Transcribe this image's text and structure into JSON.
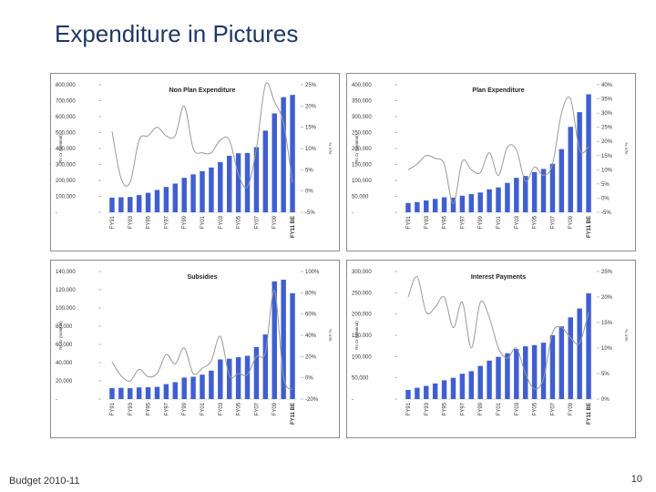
{
  "slide": {
    "title": "Expenditure in Pictures",
    "footer_left": "Budget 2010-11",
    "page_number": "10"
  },
  "colors": {
    "bar": "#3f5fd0",
    "line": "#9a9a9a",
    "title": "#1f3864"
  },
  "chart_data": [
    {
      "type": "bar",
      "title": "Non Plan Expenditure",
      "ylabel": "Rs Cr (nominal)",
      "y2label": "YoY %",
      "categories": [
        "FY91",
        "FY92",
        "FY93",
        "FY94",
        "FY95",
        "FY96",
        "FY97",
        "FY98",
        "FY99",
        "FY00",
        "FY01",
        "FY02",
        "FY03",
        "FY04",
        "FY05",
        "FY06",
        "FY07",
        "FY08",
        "FY09",
        "FY10",
        "FY11 BE"
      ],
      "xtick_labels": [
        "FY91",
        "FY93",
        "FY95",
        "FY97",
        "FY99",
        "FY01",
        "FY03",
        "FY05",
        "FY07",
        "FY09",
        "FY11 BE"
      ],
      "ylim": [
        0,
        800000
      ],
      "yticks": [
        "-",
        "100,000",
        "200,000",
        "300,000",
        "400,000",
        "500,000",
        "600,000",
        "700,000",
        "800,000"
      ],
      "y2lim": [
        -5,
        25
      ],
      "y2ticks": [
        "-5%",
        "0%",
        "5%",
        "10%",
        "15%",
        "20%",
        "25%"
      ],
      "series": [
        {
          "name": "Non Plan Expenditure",
          "kind": "bar",
          "values": [
            92000,
            94000,
            96000,
            108000,
            122000,
            140000,
            159000,
            180000,
            216000,
            238000,
            258000,
            281000,
            315000,
            354000,
            370000,
            372000,
            408000,
            512000,
            620000,
            722000,
            736000
          ]
        },
        {
          "name": "Growth",
          "kind": "line",
          "values": [
            14,
            3,
            2,
            12,
            13,
            15,
            13,
            13,
            20,
            10,
            9,
            9,
            12,
            12,
            4,
            1,
            10,
            25,
            21,
            16,
            2
          ]
        }
      ]
    },
    {
      "type": "bar",
      "title": "Plan Expenditure",
      "ylabel": "Rs Cr (nominal)",
      "y2label": "YoY %",
      "categories": [
        "FY91",
        "FY92",
        "FY93",
        "FY94",
        "FY95",
        "FY96",
        "FY97",
        "FY98",
        "FY99",
        "FY00",
        "FY01",
        "FY02",
        "FY03",
        "FY04",
        "FY05",
        "FY06",
        "FY07",
        "FY08",
        "FY09",
        "FY10",
        "FY11 BE"
      ],
      "xtick_labels": [
        "FY91",
        "FY93",
        "FY95",
        "FY97",
        "FY99",
        "FY01",
        "FY03",
        "FY05",
        "FY07",
        "FY09",
        "FY11 BE"
      ],
      "ylim": [
        0,
        400000
      ],
      "yticks": [
        "-",
        "50,000",
        "100,000",
        "150,000",
        "200,000",
        "250,000",
        "300,000",
        "350,000",
        "400,000"
      ],
      "y2lim": [
        -5,
        40
      ],
      "y2ticks": [
        "-5%",
        "0%",
        "5%",
        "10%",
        "15%",
        "20%",
        "25%",
        "30%",
        "35%",
        "40%"
      ],
      "series": [
        {
          "name": "Plan Expenditure",
          "kind": "bar",
          "values": [
            29000,
            32000,
            37000,
            42000,
            47000,
            46000,
            52000,
            57000,
            62000,
            72000,
            78000,
            92000,
            108000,
            114000,
            126000,
            136000,
            152000,
            198000,
            268000,
            314000,
            370000
          ]
        },
        {
          "name": "Growth",
          "kind": "line",
          "values": [
            10,
            12,
            15,
            14,
            12,
            -2,
            13,
            10,
            9,
            16,
            8,
            18,
            17,
            6,
            11,
            8,
            12,
            30,
            35,
            17,
            18
          ]
        }
      ]
    },
    {
      "type": "bar",
      "title": "Subsidies",
      "ylabel": "Rs Cr (nominal)",
      "y2label": "YoY %",
      "categories": [
        "FY91",
        "FY92",
        "FY93",
        "FY94",
        "FY95",
        "FY96",
        "FY97",
        "FY98",
        "FY99",
        "FY00",
        "FY01",
        "FY02",
        "FY03",
        "FY04",
        "FY05",
        "FY06",
        "FY07",
        "FY08",
        "FY09",
        "FY10",
        "FY11 BE"
      ],
      "xtick_labels": [
        "FY91",
        "FY93",
        "FY95",
        "FY97",
        "FY99",
        "FY01",
        "FY03",
        "FY05",
        "FY07",
        "FY09",
        "FY11 BE"
      ],
      "ylim": [
        0,
        140000
      ],
      "yticks": [
        "-",
        "20,000",
        "40,000",
        "60,000",
        "80,000",
        "100,000",
        "120,000",
        "140,000"
      ],
      "y2lim": [
        -20,
        100
      ],
      "y2ticks": [
        "-20%",
        "0%",
        "20%",
        "40%",
        "60%",
        "80%",
        "100%"
      ],
      "series": [
        {
          "name": "Subsidies",
          "kind": "bar",
          "values": [
            12000,
            12300,
            11900,
            12800,
            12900,
            13400,
            16400,
            18500,
            23600,
            24500,
            26800,
            31200,
            43500,
            44300,
            45900,
            47500,
            57100,
            70900,
            129200,
            131000,
            116200
          ]
        },
        {
          "name": "Growth",
          "kind": "line",
          "values": [
            15,
            2,
            -3,
            8,
            1,
            4,
            22,
            13,
            28,
            4,
            9,
            16,
            39,
            2,
            4,
            3,
            20,
            24,
            82,
            1,
            -11
          ]
        }
      ]
    },
    {
      "type": "bar",
      "title": "Interest Payments",
      "ylabel": "Rs Cr (nominal)",
      "y2label": "YoY %",
      "categories": [
        "FY91",
        "FY92",
        "FY93",
        "FY94",
        "FY95",
        "FY96",
        "FY97",
        "FY98",
        "FY99",
        "FY00",
        "FY01",
        "FY02",
        "FY03",
        "FY04",
        "FY05",
        "FY06",
        "FY07",
        "FY08",
        "FY09",
        "FY10",
        "FY11 BE"
      ],
      "xtick_labels": [
        "FY91",
        "FY93",
        "FY95",
        "FY97",
        "FY99",
        "FY01",
        "FY03",
        "FY05",
        "FY07",
        "FY09",
        "FY11 BE"
      ],
      "ylim": [
        0,
        300000
      ],
      "yticks": [
        "-",
        "50,000",
        "100,000",
        "150,000",
        "200,000",
        "250,000",
        "300,000"
      ],
      "y2lim": [
        0,
        25
      ],
      "y2ticks": [
        "0%",
        "5%",
        "10%",
        "15%",
        "20%",
        "25%"
      ],
      "series": [
        {
          "name": "Interest Payments",
          "kind": "bar",
          "values": [
            21500,
            26600,
            31000,
            36700,
            44100,
            50000,
            59500,
            65600,
            77900,
            90300,
            99300,
            107500,
            117800,
            124100,
            126900,
            132600,
            150300,
            171000,
            192200,
            213100,
            248700
          ]
        },
        {
          "name": "Growth",
          "kind": "line",
          "values": [
            20,
            24,
            17,
            18,
            20,
            14,
            19,
            10,
            19,
            16,
            10,
            8,
            10,
            5,
            2,
            4,
            13,
            14,
            12,
            11,
            17
          ]
        }
      ]
    }
  ]
}
